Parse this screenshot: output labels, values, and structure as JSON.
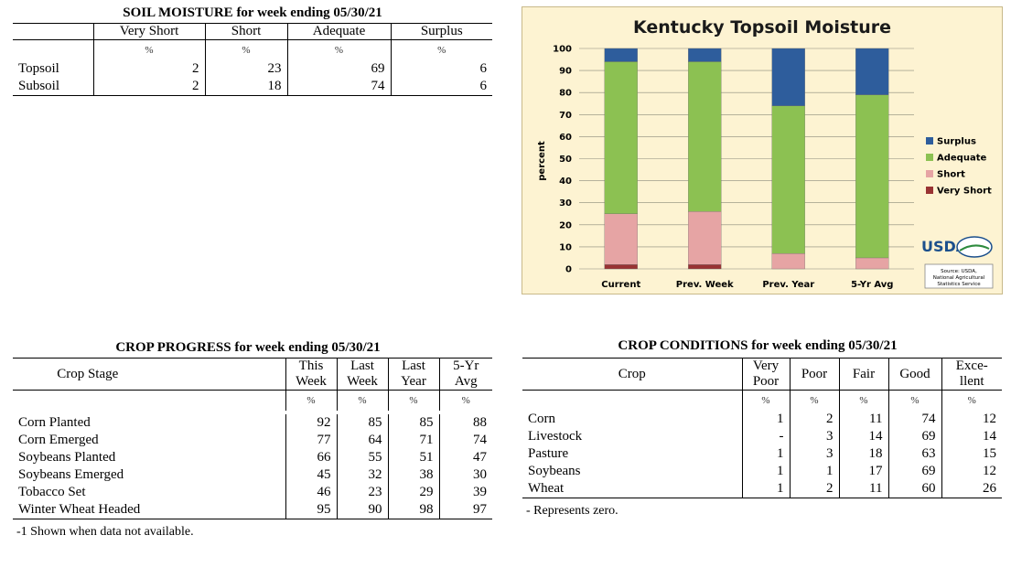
{
  "soil": {
    "title": "SOIL MOISTURE for week ending 05/30/21",
    "headers": [
      "Very Short",
      "Short",
      "Adequate",
      "Surplus"
    ],
    "unit": "%",
    "rows": [
      {
        "label": "Topsoil",
        "values": [
          "2",
          "23",
          "69",
          "6"
        ]
      },
      {
        "label": "Subsoil",
        "values": [
          "2",
          "18",
          "74",
          "6"
        ]
      }
    ]
  },
  "chart": {
    "logo_text": "USDA",
    "source_line1": "Source: USDA,",
    "source_line2": "National Agricultural",
    "source_line3": "Statistics Service"
  },
  "chart_data": {
    "type": "bar",
    "stacked": true,
    "title": "Kentucky Topsoil Moisture",
    "ylabel": "percent",
    "xlabel": "",
    "ylim": [
      0,
      100
    ],
    "yticks": [
      0,
      10,
      20,
      30,
      40,
      50,
      60,
      70,
      80,
      90,
      100
    ],
    "categories": [
      "Current",
      "Prev. Week",
      "Prev. Year",
      "5-Yr Avg"
    ],
    "series": [
      {
        "name": "Very Short",
        "values": [
          2,
          2,
          0,
          0
        ],
        "color": "#993333"
      },
      {
        "name": "Short",
        "values": [
          23,
          24,
          7,
          5
        ],
        "color": "#e6a4a4"
      },
      {
        "name": "Adequate",
        "values": [
          69,
          68,
          67,
          74
        ],
        "color": "#8cc152"
      },
      {
        "name": "Surplus",
        "values": [
          6,
          6,
          26,
          21
        ],
        "color": "#2e5d9c"
      }
    ],
    "legend_order": [
      "Surplus",
      "Adequate",
      "Short",
      "Very Short"
    ],
    "legend_position": "right",
    "grid": true
  },
  "progress": {
    "title": "CROP PROGRESS for week ending 05/30/21",
    "stage_header": "Crop Stage",
    "col_headers": [
      {
        "l1": "This",
        "l2": "Week"
      },
      {
        "l1": "Last",
        "l2": "Week"
      },
      {
        "l1": "Last",
        "l2": "Year"
      },
      {
        "l1": "5-Yr",
        "l2": "Avg"
      }
    ],
    "unit": "%",
    "rows": [
      {
        "label": "Corn Planted",
        "values": [
          "92",
          "85",
          "85",
          "88"
        ]
      },
      {
        "label": "Corn Emerged",
        "values": [
          "77",
          "64",
          "71",
          "74"
        ]
      },
      {
        "label": "Soybeans Planted",
        "values": [
          "66",
          "55",
          "51",
          "47"
        ]
      },
      {
        "label": "Soybeans Emerged",
        "values": [
          "45",
          "32",
          "38",
          "30"
        ]
      },
      {
        "label": "Tobacco Set",
        "values": [
          "46",
          "23",
          "29",
          "39"
        ]
      },
      {
        "label": "Winter Wheat Headed",
        "values": [
          "95",
          "90",
          "98",
          "97"
        ]
      }
    ],
    "footnote": "-1 Shown when data not available."
  },
  "conditions": {
    "title": "CROP CONDITIONS for week ending 05/30/21",
    "crop_header": "Crop",
    "col_headers": [
      {
        "l1": "Very",
        "l2": "Poor"
      },
      {
        "l1": "Poor",
        "l2": ""
      },
      {
        "l1": "Fair",
        "l2": ""
      },
      {
        "l1": "Good",
        "l2": ""
      },
      {
        "l1": "Exce-",
        "l2": "llent"
      }
    ],
    "unit": "%",
    "rows": [
      {
        "label": "Corn",
        "values": [
          "1",
          "2",
          "11",
          "74",
          "12"
        ]
      },
      {
        "label": "Livestock",
        "values": [
          "-",
          "3",
          "14",
          "69",
          "14"
        ]
      },
      {
        "label": "Pasture",
        "values": [
          "1",
          "3",
          "18",
          "63",
          "15"
        ]
      },
      {
        "label": "Soybeans",
        "values": [
          "1",
          "1",
          "17",
          "69",
          "12"
        ]
      },
      {
        "label": "Wheat",
        "values": [
          "1",
          "2",
          "11",
          "60",
          "26"
        ]
      }
    ],
    "footnote": "- Represents zero."
  }
}
